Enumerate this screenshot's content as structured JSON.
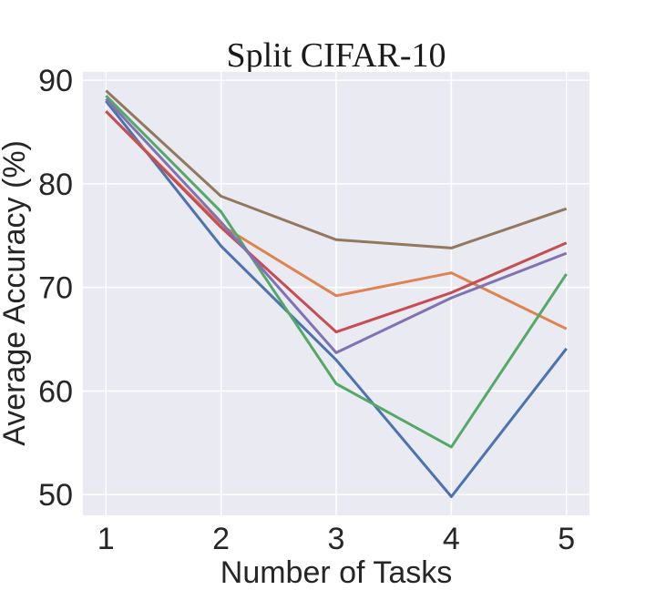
{
  "chart_data": {
    "type": "line",
    "title": "Split CIFAR-10",
    "xlabel": "Number of Tasks",
    "ylabel": "Average Accuracy (%)",
    "x": [
      1,
      2,
      3,
      4,
      5
    ],
    "xlim": [
      0.8,
      5.2
    ],
    "ylim": [
      48,
      90.8
    ],
    "yticks": [
      50,
      60,
      70,
      80,
      90
    ],
    "grid": true,
    "background": "#eaeaf2",
    "series": [
      {
        "color": "#4c72b0",
        "values": [
          88.0,
          74.0,
          63.0,
          49.8,
          64.1
        ]
      },
      {
        "color": "#dd8452",
        "values": [
          87.0,
          76.0,
          69.2,
          71.4,
          66.0
        ]
      },
      {
        "color": "#55a868",
        "values": [
          88.5,
          77.3,
          60.7,
          54.6,
          71.3
        ]
      },
      {
        "color": "#c44e52",
        "values": [
          87.0,
          75.8,
          65.7,
          69.5,
          74.3
        ]
      },
      {
        "color": "#8172b3",
        "values": [
          88.2,
          76.3,
          63.7,
          69.0,
          73.3
        ]
      },
      {
        "color": "#937860",
        "values": [
          89.0,
          78.8,
          74.6,
          73.8,
          77.6
        ]
      }
    ]
  }
}
